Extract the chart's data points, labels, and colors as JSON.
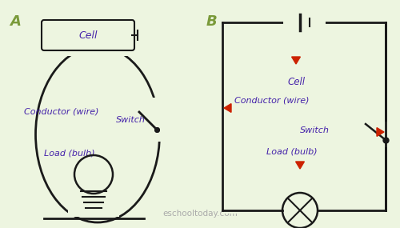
{
  "bg_color": "#edf5e0",
  "wire_color": "#1a1a1a",
  "label_color": "#4422aa",
  "arrow_color": "#cc2200",
  "section_label_color": "#7a9a3a",
  "website_color": "#aaaaaa",
  "title_A": "A",
  "title_B": "B",
  "label_conductor": "Conductor (wire)",
  "label_switch": "Switch",
  "label_load": "Load (bulb)",
  "label_cell": "Cell",
  "website": "eschooltoday.com",
  "fig_w": 5.0,
  "fig_h": 2.85,
  "dpi": 100
}
